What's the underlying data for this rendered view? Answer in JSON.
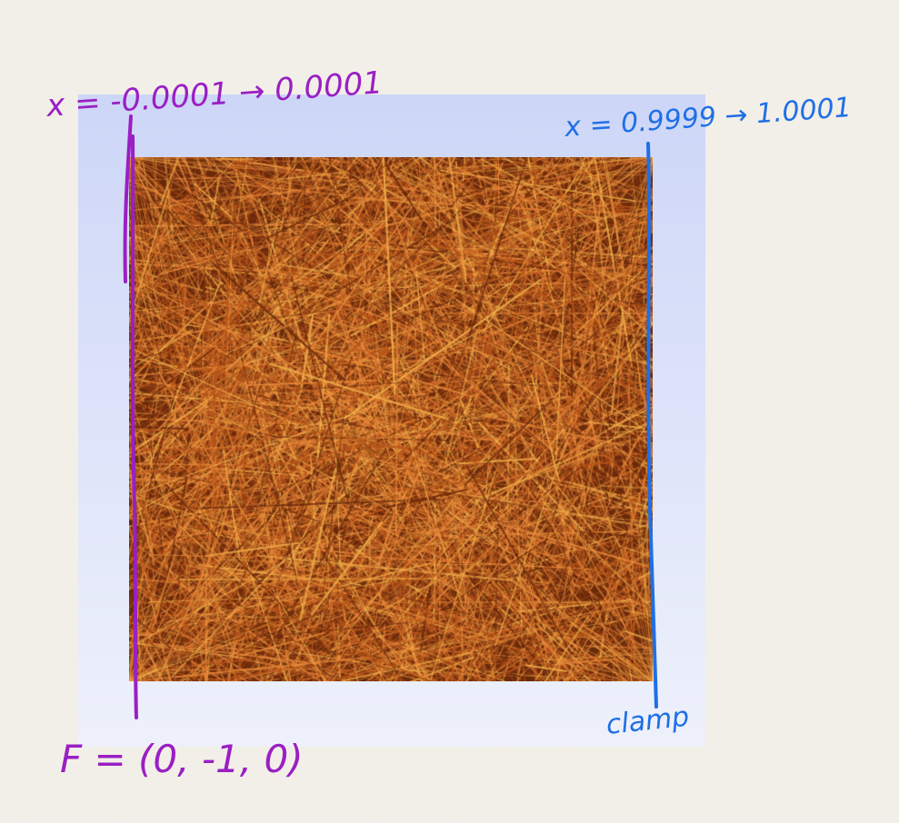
{
  "annotations": {
    "left_boundary": {
      "label": "x = -0.0001 → 0.0001",
      "color": "#9a1fc4"
    },
    "right_boundary": {
      "label": "x = 0.9999 → 1.0001",
      "color": "#1f6fe6"
    },
    "force_label": {
      "label": "F = (0, -1, 0)",
      "color": "#9a1fc4"
    },
    "clamp_label": {
      "label": "clamp",
      "color": "#1f6fe6"
    }
  },
  "colors": {
    "paper": "#f4f1ea",
    "fiber_dark": "#6b2a0c",
    "fiber_mid": "#b8551a",
    "fiber_light": "#e98a3a",
    "fiber_highlight": "#f2b24a"
  }
}
